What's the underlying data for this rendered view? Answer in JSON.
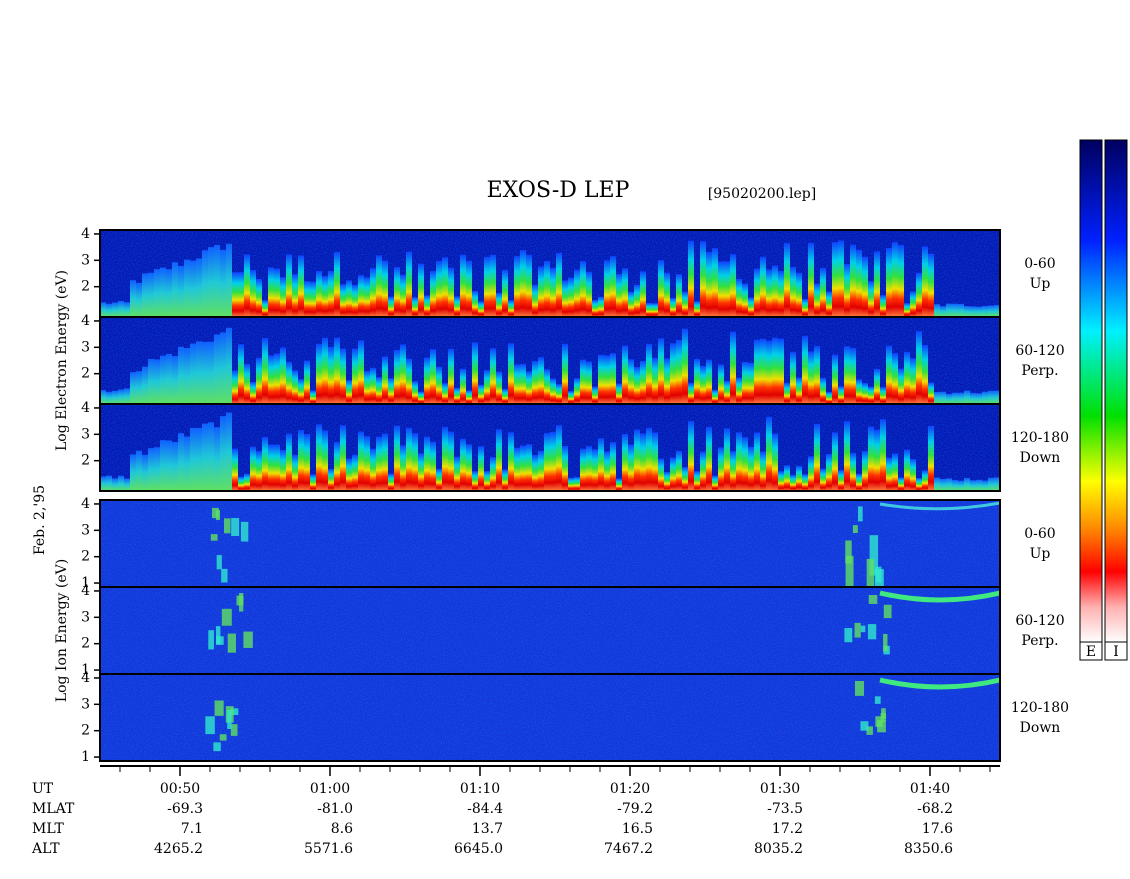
{
  "chart_data": {
    "type": "spectrogram",
    "title": "EXOS-D LEP",
    "subtitle": "[95020200.lep]",
    "date_label": "Feb. 2,'95",
    "panel_groups": [
      {
        "ylabel": "Log  Electron  Energy (eV)",
        "kind": "electron",
        "panels": [
          {
            "label": [
              "0-60",
              "Up"
            ],
            "ylim": [
              0.85,
              4.15
            ],
            "yticks": [
              2,
              3,
              4
            ]
          },
          {
            "label": [
              "60-120",
              "Perp."
            ],
            "ylim": [
              0.85,
              4.15
            ],
            "yticks": [
              2,
              3,
              4
            ]
          },
          {
            "label": [
              "120-180",
              "Down"
            ],
            "ylim": [
              0.85,
              4.15
            ],
            "yticks": [
              2,
              3,
              4
            ]
          }
        ]
      },
      {
        "ylabel": "Log  Ion  Energy (eV)",
        "kind": "ion",
        "panels": [
          {
            "label": [
              "0-60",
              "Up"
            ],
            "ylim": [
              0.85,
              4.15
            ],
            "yticks": [
              1,
              2,
              3,
              4
            ]
          },
          {
            "label": [
              "60-120",
              "Perp."
            ],
            "ylim": [
              0.85,
              4.15
            ],
            "yticks": [
              1,
              2,
              3,
              4
            ]
          },
          {
            "label": [
              "120-180",
              "Down"
            ],
            "ylim": [
              0.85,
              4.15
            ],
            "yticks": [
              1,
              2,
              3,
              4
            ]
          }
        ]
      }
    ],
    "x_tick_labels": [
      "00:50",
      "01:00",
      "01:10",
      "01:20",
      "01:30",
      "01:40"
    ],
    "orbit_rows": [
      {
        "label": "UT",
        "values": []
      },
      {
        "label": "MLAT",
        "values": [
          "-69.3",
          "-81.0",
          "-84.4",
          "-79.2",
          "-73.5",
          "-68.2"
        ]
      },
      {
        "label": "MLT",
        "values": [
          "7.1",
          "8.6",
          "13.7",
          "16.5",
          "17.2",
          "17.6"
        ]
      },
      {
        "label": "ALT",
        "values": [
          "4265.2",
          "5571.6",
          "6645.0",
          "7467.2",
          "8035.2",
          "8350.6"
        ]
      }
    ],
    "colorbar_labels": [
      "E",
      "I"
    ]
  }
}
